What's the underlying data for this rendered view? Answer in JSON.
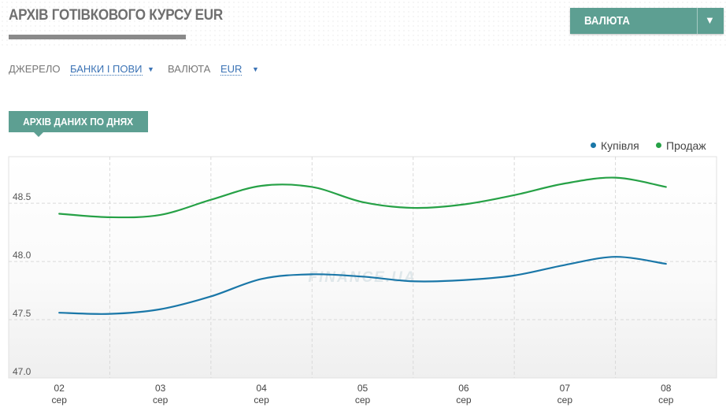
{
  "header": {
    "title": "АРХІВ ГОТІВКОВОГО КУРСУ EUR"
  },
  "currency_dropdown": {
    "label": "ВАЛЮТА"
  },
  "filters": {
    "source_label": "ДЖЕРЕЛО",
    "source_value": "БАНКИ І ПОВИ",
    "currency_label": "ВАЛЮТА",
    "currency_value": "EUR"
  },
  "section_tab": {
    "label": "АРХІВ ДАНИХ ПО ДНЯХ"
  },
  "watermark": "FINANCE.UA",
  "colors": {
    "buy": "#1a77a8",
    "sell": "#26a146",
    "accent": "#5d9f92"
  },
  "chart_data": {
    "type": "line",
    "title": "",
    "xlabel": "",
    "ylabel": "",
    "legend_position": "top-right",
    "grid": true,
    "ylim": [
      47.0,
      48.9
    ],
    "yticks": [
      47.0,
      47.5,
      48.0,
      48.5
    ],
    "ytick_labels": [
      "47.0",
      "47.5",
      "48.0",
      "48.5"
    ],
    "categories": [
      {
        "day": "02",
        "month": "сер"
      },
      {
        "day": "03",
        "month": "сер"
      },
      {
        "day": "04",
        "month": "сер"
      },
      {
        "day": "05",
        "month": "сер"
      },
      {
        "day": "06",
        "month": "сер"
      },
      {
        "day": "07",
        "month": "сер"
      },
      {
        "day": "08",
        "month": "сер"
      }
    ],
    "x": [
      1.5,
      2.0,
      2.5,
      3.0,
      3.5,
      4.0,
      4.5,
      5.0,
      5.5,
      6.0,
      6.5,
      7.0,
      7.5
    ],
    "series": [
      {
        "name": "Купівля",
        "color": "#1a77a8",
        "values": [
          47.56,
          47.55,
          47.59,
          47.7,
          47.85,
          47.89,
          47.87,
          47.83,
          47.84,
          47.88,
          47.97,
          48.04,
          47.98
        ]
      },
      {
        "name": "Продаж",
        "color": "#26a146",
        "values": [
          48.41,
          48.38,
          48.4,
          48.53,
          48.65,
          48.64,
          48.51,
          48.46,
          48.49,
          48.57,
          48.67,
          48.72,
          48.64
        ]
      }
    ]
  }
}
